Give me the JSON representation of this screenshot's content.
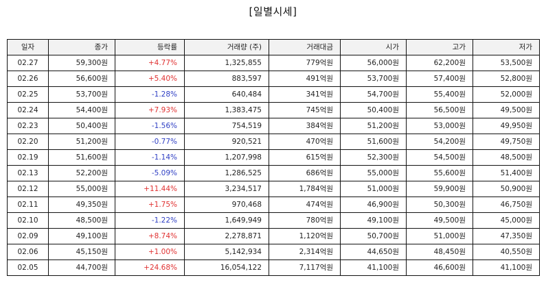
{
  "title": "[일별시세]",
  "colors": {
    "up": "#e03131",
    "down": "#2f3fc4",
    "header_bg": "#f2f2f2"
  },
  "table": {
    "headers": [
      "일자",
      "종가",
      "등락률",
      "거래량 (주)",
      "거래대금",
      "시가",
      "고가",
      "저가"
    ],
    "rows": [
      {
        "date": "02.27",
        "close": "59,300원",
        "change": "+4.77%",
        "dir": "up",
        "volume": "1,325,855",
        "amount": "779억원",
        "open": "56,000원",
        "high": "62,200원",
        "low": "53,500원"
      },
      {
        "date": "02.26",
        "close": "56,600원",
        "change": "+5.40%",
        "dir": "up",
        "volume": "883,597",
        "amount": "491억원",
        "open": "53,700원",
        "high": "57,400원",
        "low": "52,800원"
      },
      {
        "date": "02.25",
        "close": "53,700원",
        "change": "-1.28%",
        "dir": "down",
        "volume": "640,484",
        "amount": "341억원",
        "open": "54,700원",
        "high": "55,400원",
        "low": "52,000원"
      },
      {
        "date": "02.24",
        "close": "54,400원",
        "change": "+7.93%",
        "dir": "up",
        "volume": "1,383,475",
        "amount": "745억원",
        "open": "50,400원",
        "high": "56,500원",
        "low": "49,500원"
      },
      {
        "date": "02.23",
        "close": "50,400원",
        "change": "-1.56%",
        "dir": "down",
        "volume": "754,519",
        "amount": "384억원",
        "open": "51,200원",
        "high": "53,000원",
        "low": "49,950원"
      },
      {
        "date": "02.20",
        "close": "51,200원",
        "change": "-0.77%",
        "dir": "down",
        "volume": "920,521",
        "amount": "470억원",
        "open": "51,600원",
        "high": "54,200원",
        "low": "49,750원"
      },
      {
        "date": "02.19",
        "close": "51,600원",
        "change": "-1.14%",
        "dir": "down",
        "volume": "1,207,998",
        "amount": "615억원",
        "open": "52,300원",
        "high": "54,500원",
        "low": "48,500원"
      },
      {
        "date": "02.13",
        "close": "52,200원",
        "change": "-5.09%",
        "dir": "down",
        "volume": "1,286,525",
        "amount": "686억원",
        "open": "55,000원",
        "high": "55,600원",
        "low": "51,400원"
      },
      {
        "date": "02.12",
        "close": "55,000원",
        "change": "+11.44%",
        "dir": "up",
        "volume": "3,234,517",
        "amount": "1,784억원",
        "open": "51,000원",
        "high": "59,900원",
        "low": "50,900원"
      },
      {
        "date": "02.11",
        "close": "49,350원",
        "change": "+1.75%",
        "dir": "up",
        "volume": "970,468",
        "amount": "474억원",
        "open": "46,900원",
        "high": "50,300원",
        "low": "46,750원"
      },
      {
        "date": "02.10",
        "close": "48,500원",
        "change": "-1.22%",
        "dir": "down",
        "volume": "1,649,949",
        "amount": "780억원",
        "open": "49,100원",
        "high": "49,500원",
        "low": "45,000원"
      },
      {
        "date": "02.09",
        "close": "49,100원",
        "change": "+8.74%",
        "dir": "up",
        "volume": "2,278,871",
        "amount": "1,120억원",
        "open": "50,700원",
        "high": "51,000원",
        "low": "47,350원"
      },
      {
        "date": "02.06",
        "close": "45,150원",
        "change": "+1.00%",
        "dir": "up",
        "volume": "5,142,934",
        "amount": "2,314억원",
        "open": "44,650원",
        "high": "48,450원",
        "low": "40,550원"
      },
      {
        "date": "02.05",
        "close": "44,700원",
        "change": "+24.68%",
        "dir": "up",
        "volume": "16,054,122",
        "amount": "7,117억원",
        "open": "41,100원",
        "high": "46,600원",
        "low": "41,100원"
      }
    ]
  }
}
